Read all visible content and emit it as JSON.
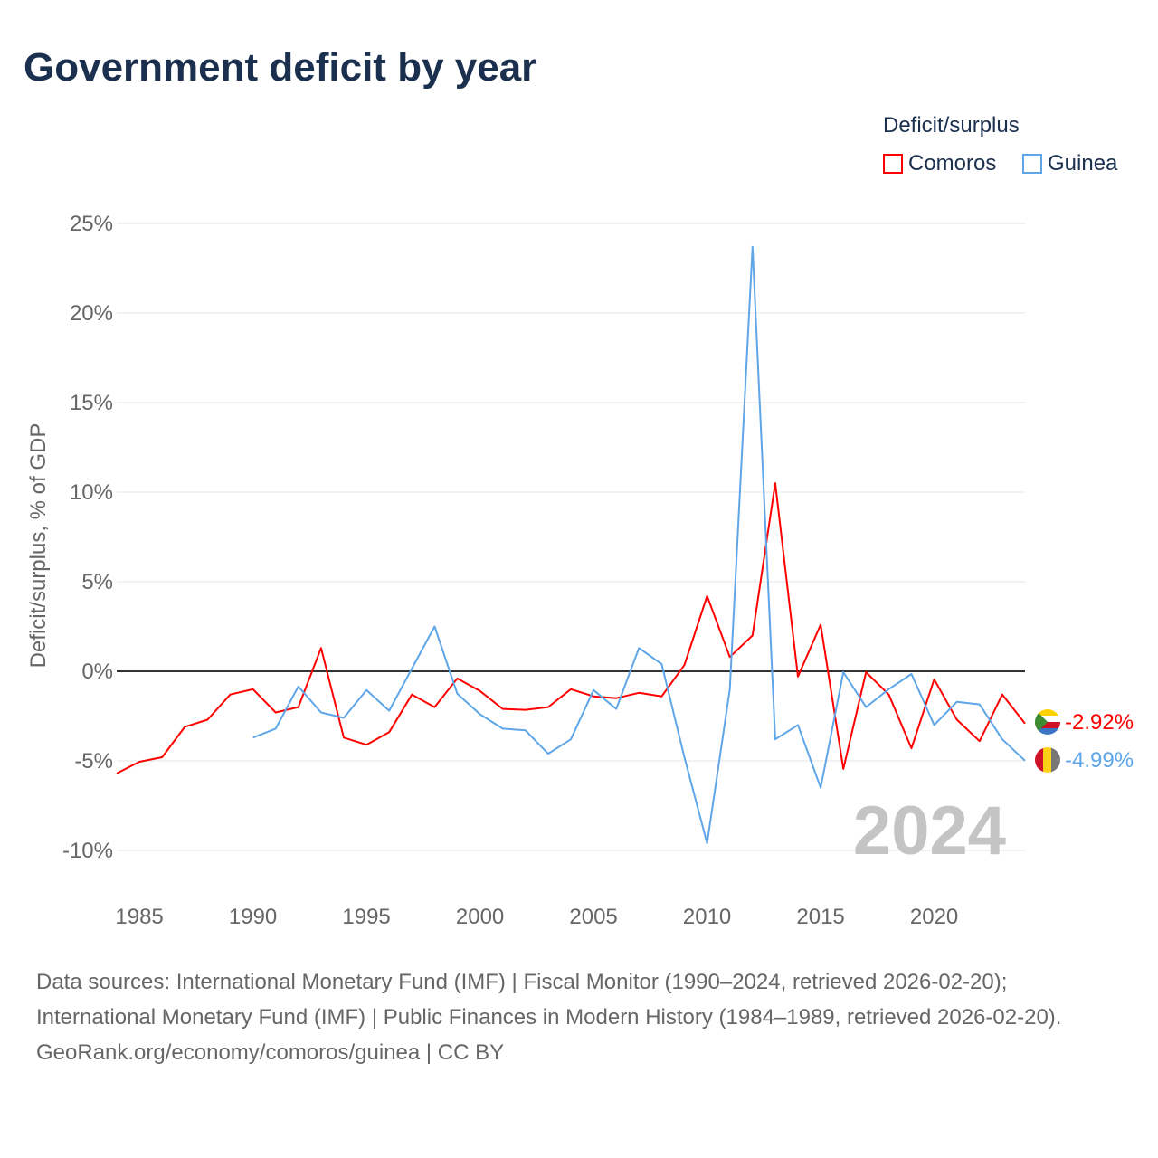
{
  "title": "Government deficit by year",
  "legend": {
    "title": "Deficit/surplus",
    "items": [
      {
        "name": "Comoros",
        "color": "#ff0000"
      },
      {
        "name": "Guinea",
        "color": "#5ea6e8"
      }
    ]
  },
  "watermark_year": "2024",
  "sources": {
    "line1": "Data sources: International Monetary Fund (IMF) | Fiscal Monitor (1990–2024, retrieved 2026-02-20); International Monetary Fund (IMF) | Public Finances in Modern History (1984–1989, retrieved 2026-02-20).",
    "line2": "GeoRank.org/economy/comoros/guinea | CC BY"
  },
  "chart_data": {
    "type": "line",
    "title": "Government deficit by year",
    "xlabel": "",
    "ylabel": "Deficit/surplus, % of GDP",
    "xlim": [
      1984,
      2024
    ],
    "ylim": [
      -12.3,
      25
    ],
    "yticks": [
      -10,
      -5,
      0,
      5,
      10,
      15,
      20,
      25
    ],
    "ytick_labels": [
      "-10%",
      "-5%",
      "0%",
      "5%",
      "10%",
      "15%",
      "20%",
      "25%"
    ],
    "xticks": [
      1985,
      1990,
      1995,
      2000,
      2005,
      2010,
      2015,
      2020
    ],
    "xtick_labels": [
      "1985",
      "1990",
      "1995",
      "2000",
      "2005",
      "2010",
      "2015",
      "2020"
    ],
    "grid": true,
    "series": [
      {
        "name": "Comoros",
        "color": "#ff0000",
        "end_label": "-2.92%",
        "x": [
          1984,
          1985,
          1986,
          1987,
          1988,
          1989,
          1990,
          1991,
          1992,
          1993,
          1994,
          1995,
          1996,
          1997,
          1998,
          1999,
          2000,
          2001,
          2002,
          2003,
          2004,
          2005,
          2006,
          2007,
          2008,
          2009,
          2010,
          2011,
          2012,
          2013,
          2014,
          2015,
          2016,
          2017,
          2018,
          2019,
          2020,
          2021,
          2022,
          2023,
          2024
        ],
        "values": [
          -5.7,
          -5.05,
          -4.8,
          -3.1,
          -2.7,
          -1.3,
          -1.0,
          -2.3,
          -2.0,
          1.3,
          -3.7,
          -4.1,
          -3.4,
          -1.3,
          -2.0,
          -0.4,
          -1.1,
          -2.1,
          -2.15,
          -2.0,
          -1.0,
          -1.4,
          -1.5,
          -1.2,
          -1.4,
          0.35,
          4.2,
          0.8,
          2.0,
          10.5,
          -0.3,
          2.6,
          -5.45,
          -0.05,
          -1.3,
          -4.3,
          -0.45,
          -2.7,
          -3.9,
          -1.3,
          -2.92
        ]
      },
      {
        "name": "Guinea",
        "color": "#5ea6e8",
        "end_label": "-4.99%",
        "x": [
          1990,
          1991,
          1992,
          1993,
          1994,
          1995,
          1996,
          1997,
          1998,
          1999,
          2000,
          2001,
          2002,
          2003,
          2004,
          2005,
          2006,
          2007,
          2008,
          2009,
          2010,
          2011,
          2012,
          2013,
          2014,
          2015,
          2016,
          2017,
          2018,
          2019,
          2020,
          2021,
          2022,
          2023,
          2024
        ],
        "values": [
          -3.7,
          -3.2,
          -0.85,
          -2.3,
          -2.6,
          -1.05,
          -2.2,
          0.15,
          2.5,
          -1.25,
          -2.4,
          -3.2,
          -3.3,
          -4.6,
          -3.8,
          -1.05,
          -2.1,
          1.3,
          0.4,
          -4.8,
          -9.6,
          -1.0,
          23.7,
          -3.8,
          -3.0,
          -6.5,
          -0.05,
          -2.0,
          -1.0,
          -0.15,
          -3.0,
          -1.7,
          -1.85,
          -3.8,
          -4.99
        ]
      }
    ]
  }
}
